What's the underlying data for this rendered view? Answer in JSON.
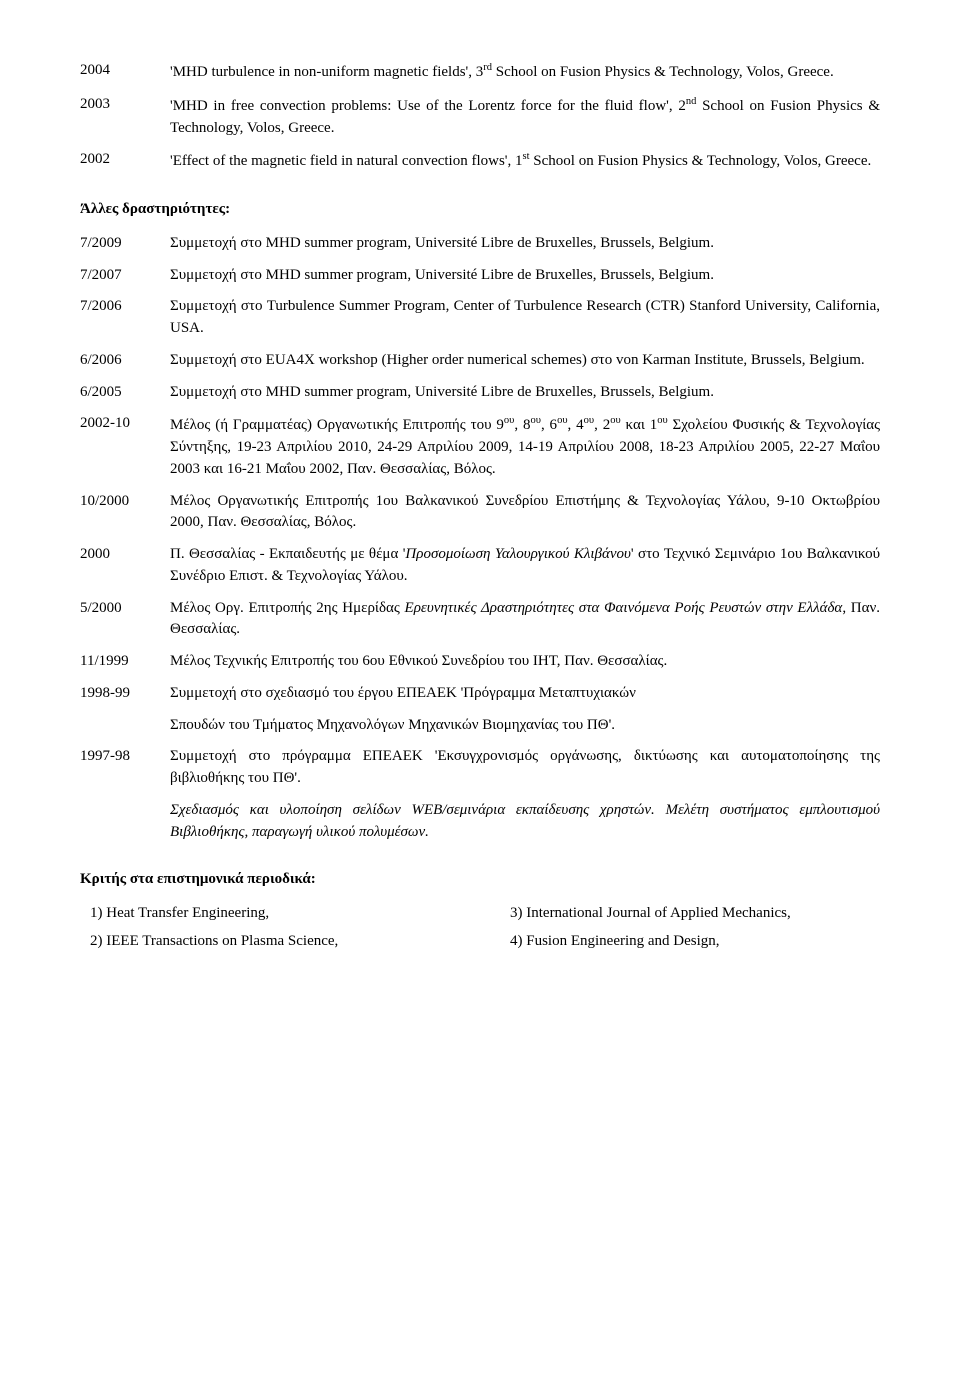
{
  "conferences": [
    {
      "year": "2004",
      "desc_html": "'MHD turbulence in non-uniform magnetic fields', 3<sup>rd</sup> School on Fusion Physics & Technology, Volos, Greece."
    },
    {
      "year": "2003",
      "desc_html": "'MHD in free convection problems: Use of the Lorentz force for the fluid flow', 2<sup>nd</sup> School on Fusion Physics & Technology, Volos, Greece."
    },
    {
      "year": "2002",
      "desc_html": "'Effect of the magnetic field in natural convection flows', 1<sup>st</sup> School on Fusion Physics & Technology, Volos, Greece."
    }
  ],
  "activities_heading": "Άλλες δραστηριότητες:",
  "activities": [
    {
      "year": "7/2009",
      "desc_html": "Συμμετοχή στο MHD summer program, Université Libre de Bruxelles, Brussels, Belgium."
    },
    {
      "year": "7/2007",
      "desc_html": "Συμμετοχή στο MHD summer program, Université Libre de Bruxelles, Brussels, Belgium."
    },
    {
      "year": "7/2006",
      "desc_html": "Συμμετοχή στο Turbulence Summer Program, Center of Turbulence Research (CTR) Stanford University, California, USA."
    },
    {
      "year": "6/2006",
      "desc_html": "Συμμετοχή στο EUA4X workshop (Higher order numerical schemes) στο von Karman Institute, Brussels, Belgium."
    },
    {
      "year": "6/2005",
      "desc_html": "Συμμετοχή στο MHD summer program, Université Libre de Bruxelles, Brussels, Belgium."
    },
    {
      "year": "2002-10",
      "desc_html": "Μέλος (ή Γραμματέας) Οργανωτικής Επιτροπής του 9<sup>ου</sup>, 8<sup>ου</sup>, 6<sup>ου</sup>, 4<sup>ου</sup>, 2<sup>ου</sup> και 1<sup>ου</sup> Σχολείου Φυσικής & Τεχνολογίας Σύντηξης, 19-23 Απριλίου 2010, 24-29 Απριλίου 2009, 14-19 Απριλίου 2008, 18-23 Απριλίου 2005, 22-27 Μαΐου 2003 και 16-21 Μαΐου 2002, Παν. Θεσσαλίας, Βόλος."
    },
    {
      "year": "10/2000",
      "desc_html": "Μέλος Οργανωτικής  Επιτροπής 1ου Βαλκανικού Συνεδρίου Επιστήμης & Τεχνολογίας Υάλου, 9-10 Οκτωβρίου 2000, Παν. Θεσσαλίας, Βόλος."
    },
    {
      "year": "2000",
      "desc_html": "Π. Θεσσαλίας - Εκπαιδευτής με θέμα '<span class=\"italic\">Προσομοίωση Υαλουργικού Κλιβάνου</span>' στο Τεχνικό Σεμινάριο 1ου Βαλκανικού Συνέδριο Επιστ. & Τεχνολογίας Υάλου."
    },
    {
      "year": "5/2000",
      "desc_html": "Μέλος Οργ. Επιτροπής 2ης Ημερίδας <span class=\"italic\">Ερευνητικές Δραστηριότητες στα Φαινόμενα Ροής Ρευστών στην Ελλάδα</span>, Παν. Θεσσαλίας."
    },
    {
      "year": "11/1999",
      "desc_html": "Μέλος Τεχνικής Επιτροπής του 6ου Εθνικού Συνεδρίου του ΙΗΤ, Παν. Θεσσαλίας."
    },
    {
      "year": "1998-99",
      "desc_html": "Συμμετοχή στο σχεδιασμό του έργου ΕΠΕΑΕΚ 'Πρόγραμμα Μεταπτυχιακών"
    }
  ],
  "indented_after_1998": "Σπουδών  του Τμήματος Μηχανολόγων Μηχανικών Βιομηχανίας του ΠΘ'.",
  "activity_1997": {
    "year": "1997-98",
    "desc_html": "Συμμετοχή στο πρόγραμμα ΕΠΕΑΕΚ 'Εκσυγχρονισμός οργάνωσης, δικτύωσης και αυτοματοποίησης της βιβλιοθήκης του ΠΘ'."
  },
  "indented_after_1997_html": "<span class=\"italic\">Σχεδιασμός και υλοποίηση σελίδων WEB/σεμινάρια εκπαίδευσης χρηστών. Μελέτη συστήματος εμπλουτισμού Βιβλιοθήκης, παραγωγή υλικού πολυμέσων.</span>",
  "journals_heading": "Κριτής στα επιστημονικά περιοδικά:",
  "journals_col1": [
    "1) Heat Transfer Engineering,",
    "2) IEEE Transactions on Plasma Science,"
  ],
  "journals_col2": [
    "3) International Journal of Applied Mechanics,",
    "4) Fusion Engineering and Design,"
  ]
}
